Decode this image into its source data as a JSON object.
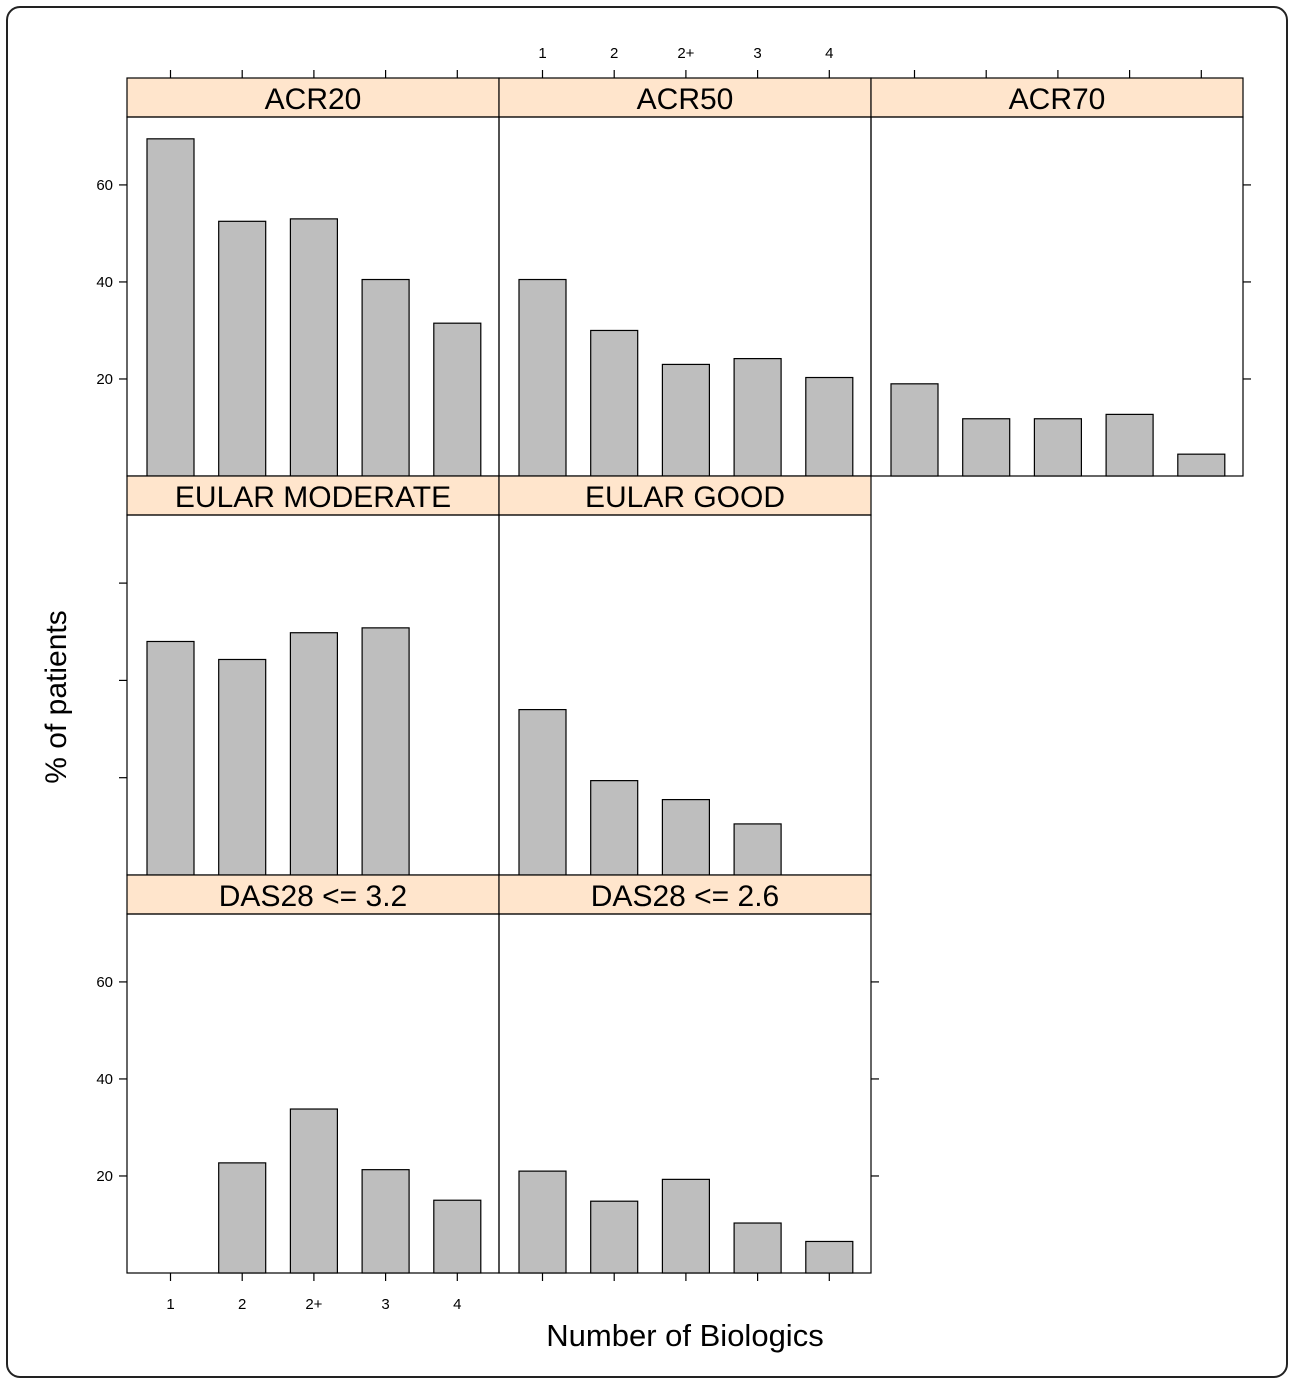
{
  "chart_data": {
    "type": "bar",
    "xlabel": "Number of Biologics",
    "ylabel": "% of patients",
    "categories": [
      "1",
      "2",
      "2+",
      "3",
      "4"
    ],
    "y_ticks": [
      "20",
      "40",
      "60"
    ],
    "ylim": [
      0,
      74
    ],
    "grid": false,
    "layout": "trellis 3 columns x 3 rows",
    "colors": {
      "bar": "#bebebe",
      "strip": "#ffe5cc",
      "axis": "#000000"
    },
    "panels": [
      {
        "name": "ACR20",
        "values": [
          69.5,
          52.5,
          53,
          40.5,
          31.5
        ]
      },
      {
        "name": "ACR50",
        "values": [
          40.5,
          30,
          23,
          24.2,
          20.3
        ]
      },
      {
        "name": "ACR70",
        "values": [
          19,
          11.8,
          11.8,
          12.7,
          4.5
        ]
      },
      {
        "name": "EULAR MODERATE",
        "values": [
          48,
          44.3,
          49.8,
          50.8,
          null
        ]
      },
      {
        "name": "EULAR GOOD",
        "values": [
          34,
          19.4,
          15.5,
          10.5,
          null
        ]
      },
      {
        "name": "DAS28 <= 3.2",
        "values": [
          0,
          22.7,
          33.8,
          21.3,
          15
        ]
      },
      {
        "name": "DAS28 <= 2.6",
        "values": [
          21,
          14.8,
          19.3,
          10.3,
          6.5
        ]
      }
    ]
  }
}
